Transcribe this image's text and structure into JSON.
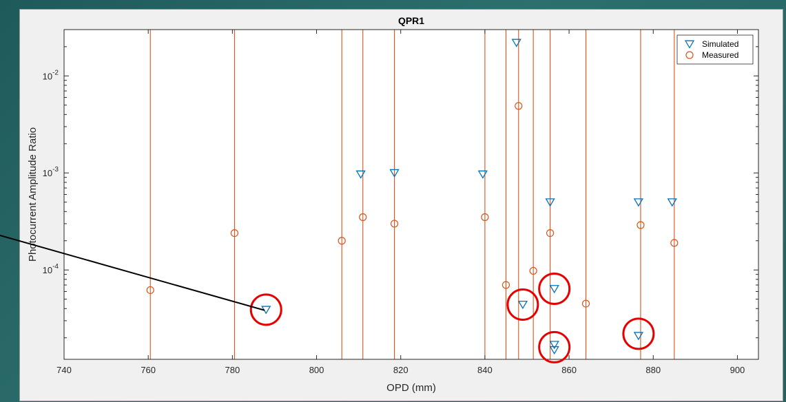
{
  "chart_data": {
    "type": "scatter",
    "title": "QPR1",
    "xlabel": "OPD (mm)",
    "ylabel": "Photocurrent Amplitude Ratio",
    "xlim": [
      740,
      905
    ],
    "ylim": [
      1.2e-05,
      0.03
    ],
    "yscale": "log",
    "grid": false,
    "legend_position": "top-right",
    "x_ticks": [
      740,
      760,
      780,
      800,
      820,
      840,
      860,
      880,
      900
    ],
    "y_ticks": [
      {
        "value": 0.0001,
        "label_base": "10",
        "label_exp": "-4"
      },
      {
        "value": 0.001,
        "label_base": "10",
        "label_exp": "-3"
      },
      {
        "value": 0.01,
        "label_base": "10",
        "label_exp": "-2"
      }
    ],
    "series": [
      {
        "name": "Simulated",
        "marker": "triangle-down",
        "color": "#0072bd",
        "points": [
          [
            788.0,
            3.9e-05
          ],
          [
            810.5,
            0.00097
          ],
          [
            818.5,
            0.001
          ],
          [
            839.5,
            0.00097
          ],
          [
            847.5,
            0.022
          ],
          [
            849.0,
            4.4e-05
          ],
          [
            855.5,
            0.0005
          ],
          [
            856.5,
            6.4e-05
          ],
          [
            856.5,
            1.7e-05
          ],
          [
            856.5,
            1.5e-05
          ],
          [
            876.5,
            0.0005
          ],
          [
            876.5,
            2.1e-05
          ],
          [
            884.5,
            0.0005
          ]
        ]
      },
      {
        "name": "Measured",
        "marker": "circle",
        "color": "#d95319",
        "points": [
          [
            760.5,
            6.2e-05
          ],
          [
            780.5,
            0.00024
          ],
          [
            806.0,
            0.0002
          ],
          [
            811.0,
            0.00035
          ],
          [
            818.5,
            0.0003
          ],
          [
            840.0,
            0.00035
          ],
          [
            845.0,
            7e-05
          ],
          [
            848.0,
            0.0049
          ],
          [
            851.5,
            9.8e-05
          ],
          [
            855.5,
            0.00024
          ],
          [
            864.0,
            4.5e-05
          ],
          [
            877.0,
            0.00029
          ],
          [
            885.0,
            0.00019
          ]
        ]
      }
    ],
    "vertical_lines": {
      "color": "#d95319",
      "x": [
        760.5,
        780.5,
        806.0,
        811.0,
        818.5,
        840.0,
        845.0,
        848.0,
        851.5,
        855.5,
        864.0,
        877.0,
        885.0
      ]
    },
    "annotations": {
      "circled_points": [
        [
          788.0,
          3.9e-05
        ],
        [
          849.0,
          4.4e-05
        ],
        [
          856.5,
          6.4e-05
        ],
        [
          856.5,
          1.6e-05
        ],
        [
          876.5,
          2.2e-05
        ]
      ],
      "circle_color": "#e60000",
      "pointer_target": [
        788.0,
        3.9e-05
      ],
      "pointer_color": "#000000"
    }
  }
}
